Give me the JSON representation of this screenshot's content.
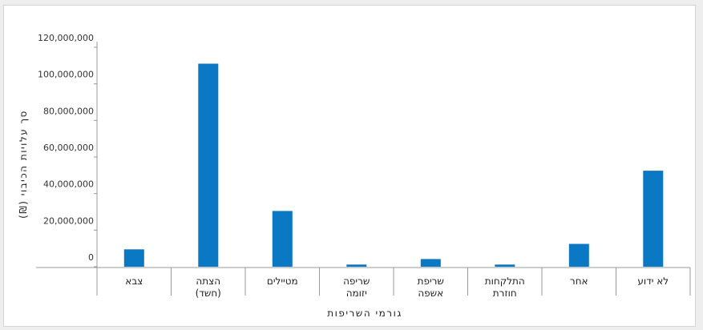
{
  "chart_data": {
    "type": "bar",
    "title": "",
    "xlabel": "גורמי השריפות",
    "ylabel": "סך עלויות הכיבוי (₪)",
    "categories": [
      [
        "צבא"
      ],
      [
        "הצתה",
        "(חשד)"
      ],
      [
        "מטיילים"
      ],
      [
        "שריפה",
        "יזומה"
      ],
      [
        "שריפת",
        "אשפה"
      ],
      [
        "התלקחות",
        "חוזרת"
      ],
      [
        "אחר"
      ],
      [
        "לא ידוע"
      ]
    ],
    "values": [
      9500000,
      111000000,
      30500000,
      1200000,
      4200000,
      1200000,
      12500000,
      52500000
    ],
    "ylim": [
      0,
      120000000
    ],
    "yticks": [
      {
        "value": 0,
        "label": "0"
      },
      {
        "value": 20000000,
        "label": "20,000,000"
      },
      {
        "value": 40000000,
        "label": "40,000,000"
      },
      {
        "value": 60000000,
        "label": "60,000,000"
      },
      {
        "value": 80000000,
        "label": "80,000,000"
      },
      {
        "value": 100000000,
        "label": "100,000,000"
      },
      {
        "value": 120000000,
        "label": "120,000,000"
      }
    ],
    "grid": false,
    "colors": {
      "bar": "#0a78c2",
      "axis": "#9a9a9a"
    }
  }
}
